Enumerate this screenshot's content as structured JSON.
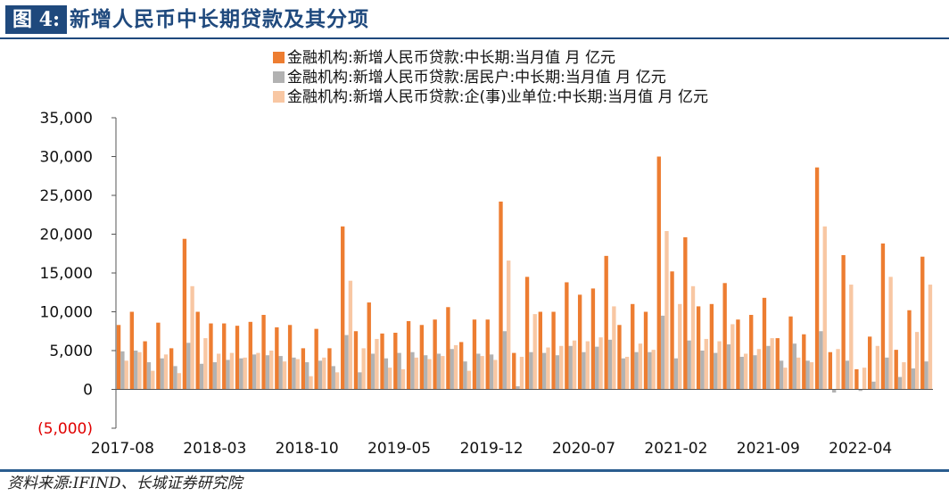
{
  "figure": {
    "label": "图 4:",
    "title": "新增人民币中长期贷款及其分项",
    "source": "资料来源:IFIND、长城证券研究院"
  },
  "colors": {
    "total": "#ed7d31",
    "household": "#b2b2b2",
    "enterprise": "#f8c7a3",
    "negative_label": "#e00000",
    "header": "#1f497d"
  },
  "chart_data": {
    "type": "bar",
    "title": "",
    "xlabel": "",
    "ylabel": "",
    "ylim": [
      -5000,
      35000
    ],
    "yticks": [
      -5000,
      0,
      5000,
      10000,
      15000,
      20000,
      25000,
      30000,
      35000
    ],
    "ytick_labels": [
      "(5,000)",
      "0",
      "5,000",
      "10,000",
      "15,000",
      "20,000",
      "25,000",
      "30,000",
      "35,000"
    ],
    "xtick_labels": [
      "2017-08",
      "2018-03",
      "2018-10",
      "2019-05",
      "2019-12",
      "2020-07",
      "2021-02",
      "2021-09",
      "2022-04"
    ],
    "legend_position": "top",
    "categories": [
      "2017-08",
      "2017-09",
      "2017-10",
      "2017-11",
      "2017-12",
      "2018-01",
      "2018-02",
      "2018-03",
      "2018-04",
      "2018-05",
      "2018-06",
      "2018-07",
      "2018-08",
      "2018-09",
      "2018-10",
      "2018-11",
      "2018-12",
      "2019-01",
      "2019-02",
      "2019-03",
      "2019-04",
      "2019-05",
      "2019-06",
      "2019-07",
      "2019-08",
      "2019-09",
      "2019-10",
      "2019-11",
      "2019-12",
      "2020-01",
      "2020-02",
      "2020-03",
      "2020-04",
      "2020-05",
      "2020-06",
      "2020-07",
      "2020-08",
      "2020-09",
      "2020-10",
      "2020-11",
      "2020-12",
      "2021-01",
      "2021-02",
      "2021-03",
      "2021-04",
      "2021-05",
      "2021-06",
      "2021-07",
      "2021-08",
      "2021-09",
      "2021-10",
      "2021-11",
      "2021-12",
      "2022-01",
      "2022-02",
      "2022-03",
      "2022-04",
      "2022-05",
      "2022-06",
      "2022-07",
      "2022-08",
      "2022-09"
    ],
    "series": [
      {
        "name": "金融机构:新增人民币贷款:中长期:当月值 月 亿元",
        "values": [
          8300,
          10000,
          6200,
          8600,
          5300,
          19400,
          10000,
          8500,
          8500,
          8200,
          8700,
          9600,
          8000,
          8300,
          5300,
          7800,
          5300,
          21000,
          7500,
          11200,
          7200,
          7300,
          8800,
          8300,
          9000,
          10600,
          6100,
          9000,
          9000,
          24200,
          4700,
          14500,
          10000,
          10000,
          13800,
          12200,
          13000,
          17200,
          8300,
          11000,
          10000,
          30000,
          15200,
          19600,
          10700,
          11000,
          13700,
          9000,
          9600,
          11800,
          6600,
          9400,
          7100,
          28600,
          4800,
          17300,
          2600,
          6800,
          18800,
          5100,
          10200,
          17100
        ]
      },
      {
        "name": "金融机构:新增人民币贷款:居民户:中长期:当月值 月 亿元",
        "values": [
          4900,
          5000,
          3500,
          4000,
          3000,
          6000,
          3300,
          3500,
          3800,
          4000,
          4500,
          4400,
          4300,
          4100,
          3500,
          3700,
          3000,
          7000,
          2200,
          4600,
          4000,
          4700,
          4800,
          4400,
          4600,
          5200,
          3600,
          4600,
          4500,
          7500,
          400,
          4800,
          4700,
          4400,
          5600,
          4800,
          5500,
          6400,
          4000,
          4800,
          4800,
          9500,
          4000,
          6300,
          5000,
          4700,
          5800,
          4200,
          4400,
          5600,
          3700,
          5900,
          3700,
          7500,
          -400,
          3700,
          -200,
          1000,
          4100,
          1600,
          2700,
          3600
        ]
      },
      {
        "name": "金融机构:新增人民币贷款:企(事)业单位:中长期:当月值 月 亿元",
        "values": [
          3700,
          4800,
          2400,
          4500,
          2100,
          13300,
          6600,
          4600,
          4700,
          4100,
          4700,
          5000,
          3600,
          3900,
          1700,
          4100,
          2200,
          14000,
          5300,
          6500,
          2800,
          2600,
          4100,
          3900,
          4300,
          5700,
          2400,
          4300,
          3800,
          16600,
          4200,
          9700,
          5400,
          5600,
          6300,
          6200,
          6700,
          10700,
          4200,
          5900,
          5100,
          20400,
          11000,
          13300,
          6500,
          6200,
          8400,
          4600,
          5200,
          6600,
          2800,
          4100,
          3500,
          21000,
          5200,
          13500,
          2800,
          5600,
          14500,
          3500,
          7400,
          13500
        ]
      }
    ]
  }
}
